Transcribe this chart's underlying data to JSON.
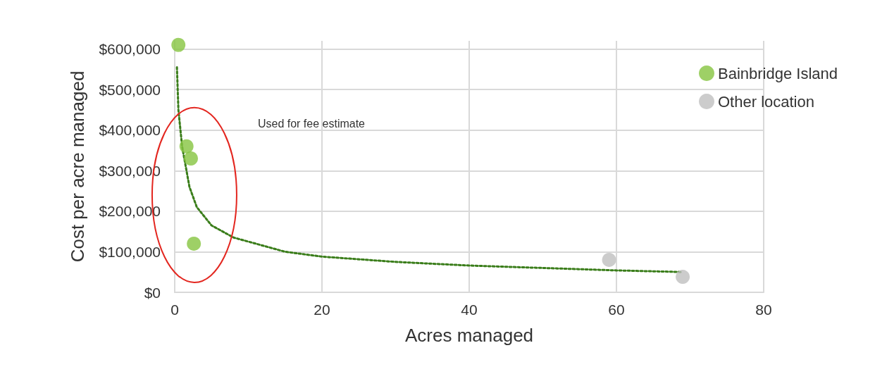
{
  "chart_data": {
    "type": "scatter",
    "xlabel": "Acres managed",
    "ylabel": "Cost per acre managed",
    "xlim": [
      0,
      80
    ],
    "xticks": [
      0,
      20,
      40,
      60,
      80
    ],
    "ylim": [
      0,
      620000
    ],
    "yticks": [
      {
        "value": 0,
        "label": "$0"
      },
      {
        "value": 100000,
        "label": "$100,000"
      },
      {
        "value": 200000,
        "label": "$200,000"
      },
      {
        "value": 300000,
        "label": "$300,000"
      },
      {
        "value": 400000,
        "label": "$400,000"
      },
      {
        "value": 500000,
        "label": "$500,000"
      },
      {
        "value": 600000,
        "label": "$600,000"
      }
    ],
    "grid": true,
    "legend": "top right",
    "marker": "circle",
    "series": [
      {
        "name": "Bainbridge Island",
        "color": "#86c440",
        "x": [
          0.5,
          1.6,
          2.2,
          2.6
        ],
        "values": [
          610000,
          360000,
          330000,
          120000
        ]
      },
      {
        "name": "Other location",
        "color": "#bfbfbf",
        "x": [
          59,
          69
        ],
        "values": [
          80000,
          38000
        ]
      },
      {
        "type": "line",
        "color": "#3a7d1a",
        "line_style": "dotted",
        "marker": "none",
        "x": [
          0.3,
          0.5,
          1,
          2,
          3,
          5,
          8,
          10,
          15,
          20,
          30,
          40,
          50,
          60,
          69
        ],
        "values": [
          555000,
          450000,
          360000,
          260000,
          210000,
          165000,
          135000,
          125000,
          100000,
          88000,
          75000,
          66000,
          60000,
          54000,
          50000
        ]
      }
    ],
    "annotations": [
      "Used for fee estimate"
    ]
  }
}
